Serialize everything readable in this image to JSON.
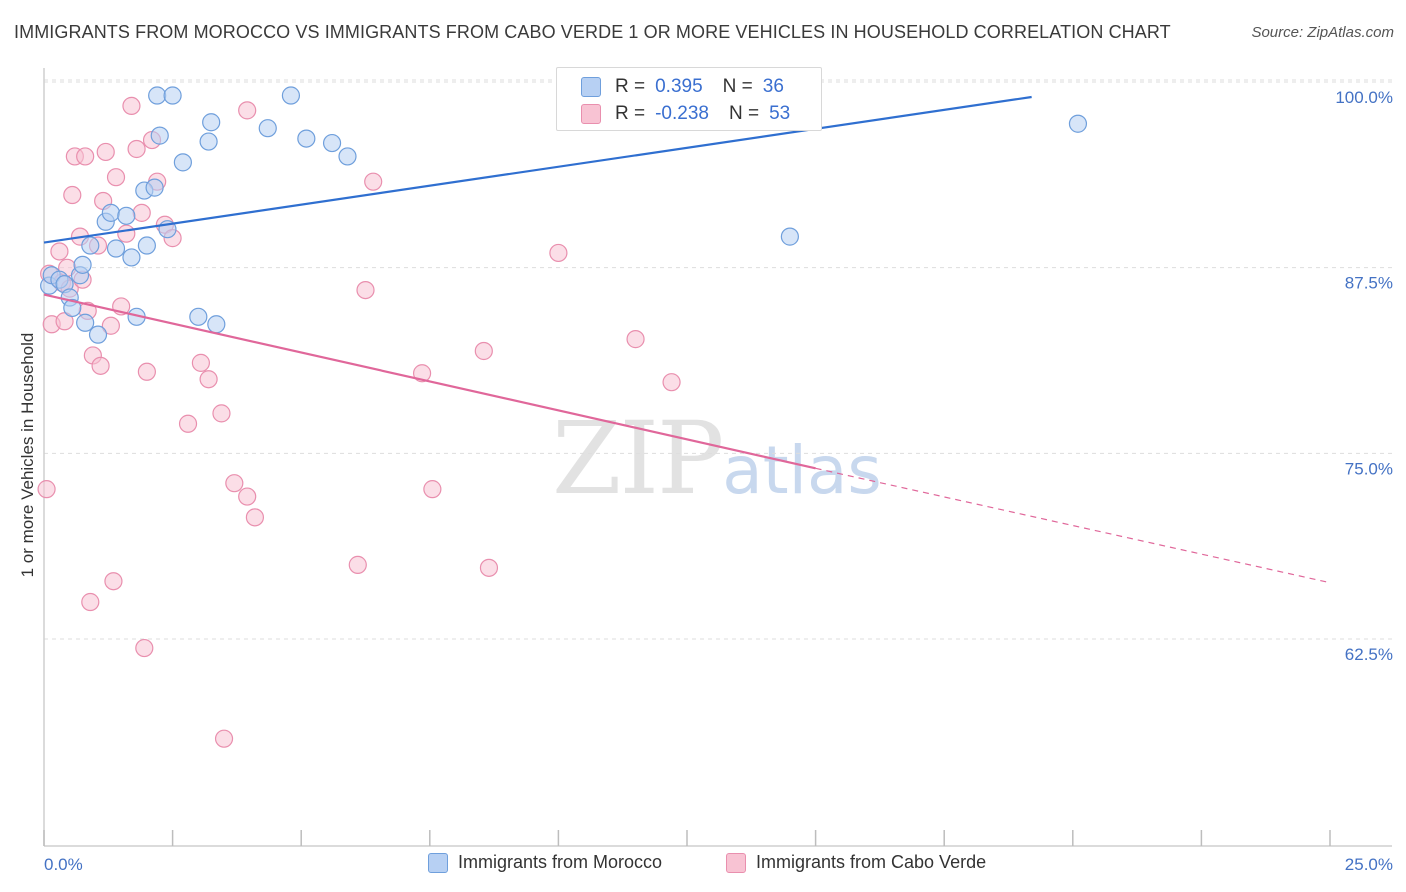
{
  "title": "IMMIGRANTS FROM MOROCCO VS IMMIGRANTS FROM CABO VERDE 1 OR MORE VEHICLES IN HOUSEHOLD CORRELATION CHART",
  "source": "Source: ZipAtlas.com",
  "watermark": {
    "zip": "ZIP",
    "atlas": "atlas"
  },
  "legend": {
    "rows": [
      {
        "r_label": "R =",
        "r_value": "0.395",
        "n_label": "N =",
        "n_value": "36"
      },
      {
        "r_label": "R =",
        "r_value": "-0.238",
        "n_label": "N =",
        "n_value": "53"
      }
    ]
  },
  "bottom_legend": [
    "Immigrants from Morocco",
    "Immigrants from Cabo Verde"
  ],
  "colors": {
    "morocco_fill": "#b7d0f3",
    "morocco_stroke": "#6f9fdc",
    "morocco_line": "#2f6fd0",
    "cabo_fill": "#f8c3d3",
    "cabo_stroke": "#e98fae",
    "cabo_line": "#e0679a",
    "grid": "#dddddd",
    "axis_label": "#4472c4"
  },
  "chart_data": {
    "type": "scatter",
    "title": "IMMIGRANTS FROM MOROCCO VS IMMIGRANTS FROM CABO VERDE 1 OR MORE VEHICLES IN HOUSEHOLD CORRELATION CHART",
    "xlabel": "",
    "ylabel": "1 or more Vehicles in Household",
    "xlim": [
      0,
      25
    ],
    "ylim": [
      50,
      101.5
    ],
    "x_tick_labels": [
      "0.0%",
      "25.0%"
    ],
    "y_ticks": [
      62.5,
      75.0,
      87.5,
      100.0
    ],
    "y_tick_labels": [
      "62.5%",
      "75.0%",
      "87.5%",
      "100.0%"
    ],
    "grid": true,
    "series": [
      {
        "name": "Immigrants from Morocco",
        "R": 0.395,
        "N": 36,
        "trend": {
          "x": [
            0.0,
            19.2
          ],
          "y": [
            90.2,
            100.0
          ]
        },
        "points": [
          [
            0.1,
            87.3
          ],
          [
            0.15,
            88.0
          ],
          [
            0.3,
            87.7
          ],
          [
            0.4,
            87.4
          ],
          [
            0.5,
            86.5
          ],
          [
            0.55,
            85.8
          ],
          [
            0.7,
            88.0
          ],
          [
            0.75,
            88.7
          ],
          [
            0.8,
            84.8
          ],
          [
            0.9,
            90.0
          ],
          [
            1.05,
            84.0
          ],
          [
            1.2,
            91.6
          ],
          [
            1.3,
            92.2
          ],
          [
            1.4,
            89.8
          ],
          [
            1.6,
            92.0
          ],
          [
            1.7,
            89.2
          ],
          [
            1.8,
            85.2
          ],
          [
            1.95,
            93.7
          ],
          [
            2.0,
            90.0
          ],
          [
            2.15,
            93.9
          ],
          [
            2.2,
            100.1
          ],
          [
            2.25,
            97.4
          ],
          [
            2.4,
            91.1
          ],
          [
            2.5,
            100.1
          ],
          [
            2.7,
            95.6
          ],
          [
            3.0,
            85.2
          ],
          [
            3.2,
            97.0
          ],
          [
            3.25,
            98.3
          ],
          [
            3.35,
            84.7
          ],
          [
            4.35,
            97.9
          ],
          [
            4.8,
            100.1
          ],
          [
            5.1,
            97.2
          ],
          [
            5.6,
            96.9
          ],
          [
            5.9,
            96.0
          ],
          [
            14.5,
            90.6
          ],
          [
            20.1,
            98.2
          ]
        ]
      },
      {
        "name": "Immigrants from Cabo Verde",
        "R": -0.238,
        "N": 53,
        "trend": {
          "x": [
            0.0,
            15.0,
            25.0
          ],
          "y": [
            86.7,
            75.0,
            67.3
          ],
          "dashed_from": 15.0
        },
        "points": [
          [
            0.05,
            73.6
          ],
          [
            0.1,
            88.1
          ],
          [
            0.15,
            84.7
          ],
          [
            0.3,
            89.6
          ],
          [
            0.35,
            87.5
          ],
          [
            0.4,
            84.9
          ],
          [
            0.45,
            88.5
          ],
          [
            0.5,
            87.1
          ],
          [
            0.55,
            93.4
          ],
          [
            0.6,
            96.0
          ],
          [
            0.7,
            90.6
          ],
          [
            0.75,
            87.7
          ],
          [
            0.8,
            96.0
          ],
          [
            0.85,
            85.6
          ],
          [
            0.9,
            66.0
          ],
          [
            0.95,
            82.6
          ],
          [
            1.05,
            90.0
          ],
          [
            1.1,
            81.9
          ],
          [
            1.15,
            93.0
          ],
          [
            1.2,
            96.3
          ],
          [
            1.3,
            84.6
          ],
          [
            1.35,
            67.4
          ],
          [
            1.4,
            94.6
          ],
          [
            1.5,
            85.9
          ],
          [
            1.6,
            90.8
          ],
          [
            1.7,
            99.4
          ],
          [
            1.8,
            96.5
          ],
          [
            1.9,
            92.2
          ],
          [
            1.95,
            62.9
          ],
          [
            2.0,
            81.5
          ],
          [
            2.1,
            97.1
          ],
          [
            2.2,
            94.3
          ],
          [
            2.35,
            91.4
          ],
          [
            2.5,
            90.5
          ],
          [
            2.8,
            78.0
          ],
          [
            3.05,
            82.1
          ],
          [
            3.2,
            81.0
          ],
          [
            3.45,
            78.7
          ],
          [
            3.5,
            56.8
          ],
          [
            3.7,
            74.0
          ],
          [
            3.95,
            73.1
          ],
          [
            4.1,
            71.7
          ],
          [
            3.95,
            99.1
          ],
          [
            6.1,
            68.5
          ],
          [
            6.25,
            87.0
          ],
          [
            6.4,
            94.3
          ],
          [
            7.35,
            81.4
          ],
          [
            7.55,
            73.6
          ],
          [
            8.55,
            82.9
          ],
          [
            8.65,
            68.3
          ],
          [
            10.0,
            89.5
          ],
          [
            11.5,
            83.7
          ],
          [
            12.2,
            80.8
          ]
        ]
      }
    ]
  }
}
